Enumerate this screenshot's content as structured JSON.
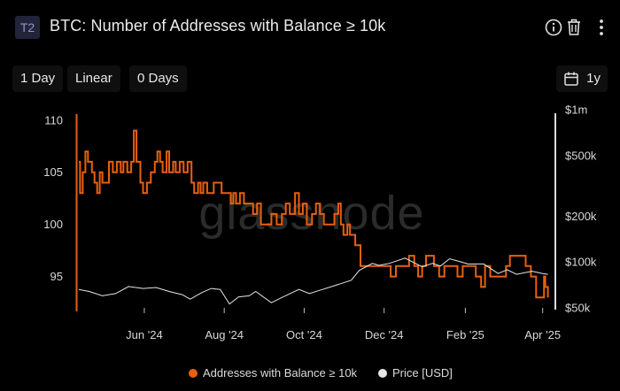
{
  "header": {
    "badge": "T2",
    "title": "BTC: Number of Addresses with Balance ≥ 10k",
    "icons": [
      "info-icon",
      "trash-icon",
      "more-icon"
    ]
  },
  "controls": {
    "resolution": "1 Day",
    "scale": "Linear",
    "sma": "0 Days",
    "range": "1y"
  },
  "watermark": "glassnode",
  "colors": {
    "addresses": "#e8600f",
    "price": "#e6e6e6",
    "background": "#000000",
    "watermark": "#2b2b2b"
  },
  "legend": {
    "addresses": "Addresses with Balance ≥ 10k",
    "price": "Price [USD]"
  },
  "chart_data": {
    "type": "line",
    "x_type": "date",
    "x_range": [
      "2024-04-10",
      "2025-04-10"
    ],
    "x_ticks": [
      {
        "label": "Jun '24",
        "date": "2024-06-01"
      },
      {
        "label": "Aug '24",
        "date": "2024-08-01"
      },
      {
        "label": "Oct '24",
        "date": "2024-10-01"
      },
      {
        "label": "Dec '24",
        "date": "2024-12-01"
      },
      {
        "label": "Feb '25",
        "date": "2025-02-01"
      },
      {
        "label": "Apr '25",
        "date": "2025-04-01"
      }
    ],
    "y_left": {
      "scale": "linear",
      "range": [
        92,
        111
      ],
      "ticks": [
        "110",
        "105",
        "100",
        "95"
      ]
    },
    "y_right": {
      "scale": "log",
      "range": [
        50000,
        1000000
      ],
      "ticks": [
        {
          "label": "$1m",
          "value": 1000000
        },
        {
          "label": "$500k",
          "value": 500000
        },
        {
          "label": "$200k",
          "value": 200000
        },
        {
          "label": "$100k",
          "value": 100000
        },
        {
          "label": "$50k",
          "value": 50000
        }
      ]
    },
    "series": [
      {
        "name": "Addresses with Balance ≥ 10k",
        "axis": "left",
        "step": true,
        "points": [
          [
            "2024-04-12",
            106
          ],
          [
            "2024-04-13",
            103
          ],
          [
            "2024-04-15",
            105
          ],
          [
            "2024-04-17",
            107
          ],
          [
            "2024-04-19",
            106
          ],
          [
            "2024-04-22",
            105
          ],
          [
            "2024-04-24",
            104
          ],
          [
            "2024-04-26",
            103
          ],
          [
            "2024-04-28",
            105
          ],
          [
            "2024-04-30",
            104
          ],
          [
            "2024-05-02",
            104
          ],
          [
            "2024-05-05",
            106
          ],
          [
            "2024-05-08",
            105
          ],
          [
            "2024-05-11",
            106
          ],
          [
            "2024-05-14",
            105
          ],
          [
            "2024-05-16",
            106
          ],
          [
            "2024-05-19",
            105
          ],
          [
            "2024-05-22",
            106
          ],
          [
            "2024-05-24",
            109
          ],
          [
            "2024-05-26",
            106
          ],
          [
            "2024-05-29",
            104
          ],
          [
            "2024-05-31",
            103
          ],
          [
            "2024-06-03",
            104
          ],
          [
            "2024-06-06",
            105
          ],
          [
            "2024-06-09",
            106
          ],
          [
            "2024-06-11",
            107
          ],
          [
            "2024-06-13",
            106
          ],
          [
            "2024-06-15",
            105
          ],
          [
            "2024-06-18",
            107
          ],
          [
            "2024-06-20",
            105
          ],
          [
            "2024-06-23",
            106
          ],
          [
            "2024-06-25",
            105
          ],
          [
            "2024-06-28",
            106
          ],
          [
            "2024-07-01",
            105
          ],
          [
            "2024-07-04",
            106
          ],
          [
            "2024-07-07",
            104
          ],
          [
            "2024-07-09",
            103
          ],
          [
            "2024-07-12",
            104
          ],
          [
            "2024-07-14",
            103
          ],
          [
            "2024-07-16",
            104
          ],
          [
            "2024-07-19",
            103
          ],
          [
            "2024-07-24",
            104
          ],
          [
            "2024-07-28",
            104
          ],
          [
            "2024-07-30",
            103
          ],
          [
            "2024-08-03",
            103
          ],
          [
            "2024-08-06",
            102
          ],
          [
            "2024-08-08",
            103
          ],
          [
            "2024-08-10",
            102
          ],
          [
            "2024-08-13",
            103
          ],
          [
            "2024-08-16",
            102
          ],
          [
            "2024-08-20",
            102
          ],
          [
            "2024-08-23",
            101
          ],
          [
            "2024-08-26",
            102
          ],
          [
            "2024-08-29",
            100
          ],
          [
            "2024-09-06",
            101
          ],
          [
            "2024-09-10",
            100
          ],
          [
            "2024-09-14",
            101
          ],
          [
            "2024-09-17",
            102
          ],
          [
            "2024-09-20",
            101
          ],
          [
            "2024-09-24",
            103
          ],
          [
            "2024-09-27",
            101
          ],
          [
            "2024-09-30",
            102
          ],
          [
            "2024-10-03",
            100
          ],
          [
            "2024-10-07",
            101
          ],
          [
            "2024-10-10",
            102
          ],
          [
            "2024-10-13",
            101
          ],
          [
            "2024-10-16",
            100
          ],
          [
            "2024-10-24",
            101
          ],
          [
            "2024-10-27",
            102
          ],
          [
            "2024-10-29",
            100
          ],
          [
            "2024-10-31",
            99
          ],
          [
            "2024-11-03",
            100
          ],
          [
            "2024-11-05",
            99
          ],
          [
            "2024-11-09",
            98
          ],
          [
            "2024-11-13",
            96
          ],
          [
            "2024-12-06",
            95
          ],
          [
            "2024-12-10",
            96
          ],
          [
            "2024-12-20",
            97
          ],
          [
            "2024-12-24",
            96
          ],
          [
            "2024-12-27",
            95
          ],
          [
            "2024-12-30",
            96
          ],
          [
            "2025-01-02",
            97
          ],
          [
            "2025-01-08",
            96
          ],
          [
            "2025-01-12",
            95
          ],
          [
            "2025-01-16",
            96
          ],
          [
            "2025-01-22",
            96
          ],
          [
            "2025-01-26",
            95
          ],
          [
            "2025-01-30",
            96
          ],
          [
            "2025-02-04",
            96
          ],
          [
            "2025-02-09",
            95
          ],
          [
            "2025-02-13",
            94
          ],
          [
            "2025-02-16",
            96
          ],
          [
            "2025-02-20",
            95
          ],
          [
            "2025-02-24",
            95
          ],
          [
            "2025-03-01",
            95
          ],
          [
            "2025-03-04",
            96
          ],
          [
            "2025-03-07",
            97
          ],
          [
            "2025-03-19",
            96
          ],
          [
            "2025-03-23",
            95
          ],
          [
            "2025-03-27",
            93
          ],
          [
            "2025-03-31",
            93
          ],
          [
            "2025-04-02",
            95
          ],
          [
            "2025-04-03",
            94
          ],
          [
            "2025-04-05",
            93
          ]
        ]
      },
      {
        "name": "Price [USD]",
        "axis": "right",
        "points": [
          [
            "2024-04-12",
            66000
          ],
          [
            "2024-04-20",
            64000
          ],
          [
            "2024-04-30",
            60000
          ],
          [
            "2024-05-10",
            62000
          ],
          [
            "2024-05-20",
            69000
          ],
          [
            "2024-05-31",
            67000
          ],
          [
            "2024-06-10",
            68000
          ],
          [
            "2024-06-20",
            64000
          ],
          [
            "2024-06-30",
            61000
          ],
          [
            "2024-07-06",
            57000
          ],
          [
            "2024-07-15",
            63000
          ],
          [
            "2024-07-22",
            67000
          ],
          [
            "2024-07-29",
            66000
          ],
          [
            "2024-08-05",
            53000
          ],
          [
            "2024-08-12",
            59000
          ],
          [
            "2024-08-20",
            60000
          ],
          [
            "2024-08-25",
            64000
          ],
          [
            "2024-09-06",
            54000
          ],
          [
            "2024-09-15",
            59000
          ],
          [
            "2024-09-27",
            66000
          ],
          [
            "2024-10-05",
            62000
          ],
          [
            "2024-10-15",
            66000
          ],
          [
            "2024-10-29",
            72000
          ],
          [
            "2024-11-06",
            76000
          ],
          [
            "2024-11-12",
            88000
          ],
          [
            "2024-11-22",
            98000
          ],
          [
            "2024-11-27",
            95000
          ],
          [
            "2024-12-05",
            98000
          ],
          [
            "2024-12-17",
            106000
          ],
          [
            "2024-12-30",
            93000
          ],
          [
            "2025-01-07",
            98000
          ],
          [
            "2025-01-13",
            94000
          ],
          [
            "2025-01-20",
            105000
          ],
          [
            "2025-01-27",
            101000
          ],
          [
            "2025-02-03",
            97000
          ],
          [
            "2025-02-15",
            97000
          ],
          [
            "2025-02-26",
            84000
          ],
          [
            "2025-03-05",
            89000
          ],
          [
            "2025-03-12",
            83000
          ],
          [
            "2025-03-24",
            87000
          ],
          [
            "2025-04-01",
            84000
          ],
          [
            "2025-04-05",
            83000
          ]
        ]
      }
    ]
  }
}
